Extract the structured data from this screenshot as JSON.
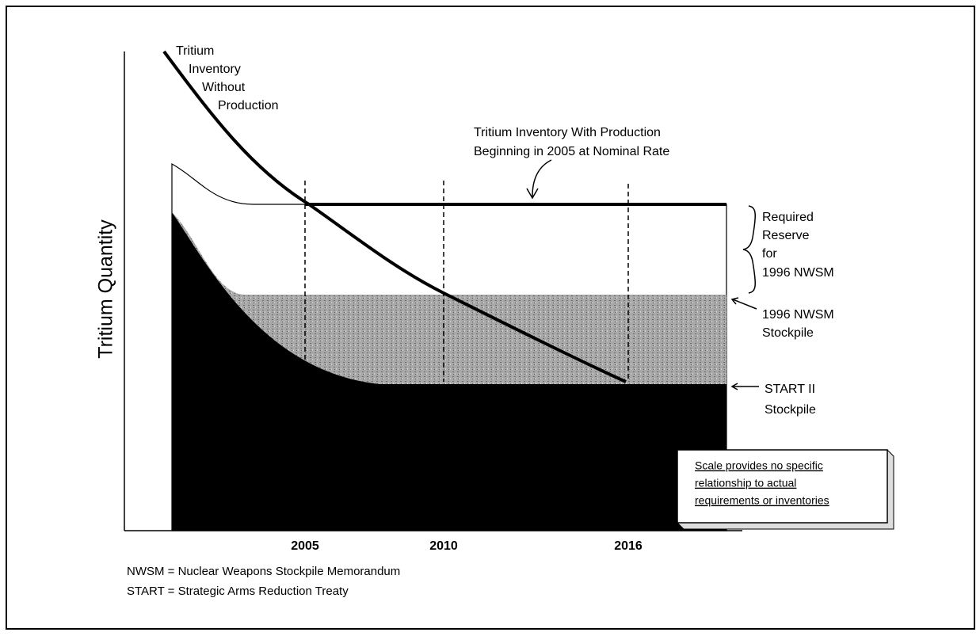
{
  "y_axis_label": "Tritium Quantity",
  "curve_label": [
    "Tritium",
    "Inventory",
    "Without",
    "Production"
  ],
  "production_label": [
    "Tritium Inventory With Production",
    "Beginning in 2005 at Nominal Rate"
  ],
  "reserve_label": [
    "Required",
    "Reserve",
    "for",
    "1996 NWSM"
  ],
  "nwsm_label": [
    "1996 NWSM",
    "Stockpile"
  ],
  "start_label": [
    "START II",
    "Stockpile"
  ],
  "note": [
    "Scale provides no specific",
    "relationship to actual",
    "requirements or inventories"
  ],
  "x_labels": [
    "2005",
    "2010",
    "2016"
  ],
  "footnotes": [
    "NWSM = Nuclear Weapons Stockpile Memorandum",
    "START = Strategic Arms Reduction Treaty"
  ]
}
